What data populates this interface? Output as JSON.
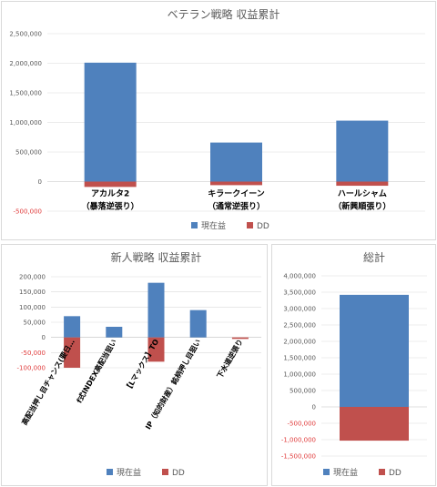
{
  "colors": {
    "profit": "#4f81bd",
    "dd": "#c0504d",
    "grid": "#d9d9d9",
    "axis": "#bfbfbf"
  },
  "chart_data": [
    {
      "type": "bar",
      "title": "ベテラン戦略 収益累計",
      "categories": [
        [
          "アカルタ2",
          "（暴落逆張り）"
        ],
        [
          "キラークイーン",
          "（通常逆張り）"
        ],
        [
          "ハールシャム",
          "（新興順張り）"
        ]
      ],
      "series": [
        {
          "name": "現在益",
          "values": [
            2010000,
            660000,
            1030000
          ]
        },
        {
          "name": "DD",
          "values": [
            -90000,
            -60000,
            -70000
          ]
        }
      ],
      "ylim": [
        -500000,
        2500000
      ],
      "yticks": [
        -500000,
        0,
        500000,
        1000000,
        1500000,
        2000000,
        2500000
      ],
      "ytick_labels": [
        "-500,000",
        "0",
        "500,000",
        "1,000,000",
        "1,500,000",
        "2,000,000",
        "2,500,000"
      ],
      "grid": true,
      "legend": "bottom",
      "xlabel": "",
      "ylabel": ""
    },
    {
      "type": "bar",
      "title": "新人戦略 収益累計",
      "categories": [
        "高配当押し目チャンス(要日…",
        "f式INDEX高配当狙い",
        "【Lマックス】TO",
        "IP（知的財産）銘柄押し目狙い",
        "下水道逆張り"
      ],
      "series": [
        {
          "name": "現在益",
          "values": [
            70000,
            35000,
            180000,
            90000,
            0
          ]
        },
        {
          "name": "DD",
          "values": [
            -100000,
            0,
            -80000,
            0,
            -5000
          ]
        }
      ],
      "ylim": [
        -100000,
        200000
      ],
      "yticks": [
        -100000,
        -50000,
        0,
        50000,
        100000,
        150000,
        200000
      ],
      "ytick_labels": [
        "-100,000",
        "-50,000",
        "0",
        "50,000",
        "100,000",
        "150,000",
        "200,000"
      ],
      "grid": true,
      "legend": "bottom",
      "xlabel": "",
      "ylabel": ""
    },
    {
      "type": "bar",
      "title": "総計",
      "categories": [
        ""
      ],
      "series": [
        {
          "name": "現在益",
          "values": [
            3420000
          ]
        },
        {
          "name": "DD",
          "values": [
            -1030000
          ]
        }
      ],
      "ylim": [
        -1500000,
        4000000
      ],
      "yticks": [
        -1500000,
        -1000000,
        -500000,
        0,
        500000,
        1000000,
        1500000,
        2000000,
        2500000,
        3000000,
        3500000,
        4000000
      ],
      "ytick_labels": [
        "-1,500,000",
        "-1,000,000",
        "-500,000",
        "0",
        "500,000",
        "1,000,000",
        "1,500,000",
        "2,000,000",
        "2,500,000",
        "3,000,000",
        "3,500,000",
        "4,000,000"
      ],
      "grid": true,
      "legend": "bottom",
      "xlabel": "",
      "ylabel": ""
    }
  ]
}
